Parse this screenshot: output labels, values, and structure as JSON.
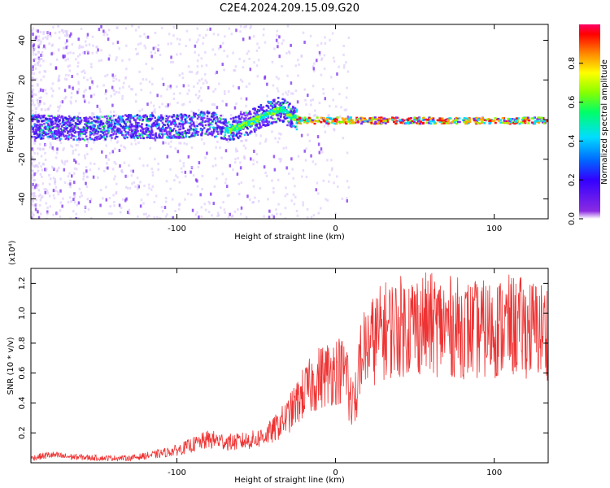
{
  "title": "C2E4.2024.209.15.09.G20",
  "chart_data": [
    {
      "type": "heatmap",
      "name": "spectrogram",
      "xlabel": "Height of straight line (km)",
      "ylabel": "Frequency (Hz)",
      "xlim": [
        -192,
        134
      ],
      "ylim": [
        -50,
        48
      ],
      "xticks": [
        -100,
        0,
        100
      ],
      "xtick_labels": [
        "-100",
        "0",
        "100"
      ],
      "yticks": [
        -40,
        -20,
        0,
        20,
        40
      ],
      "ytick_labels": [
        "-40",
        "-20",
        "0",
        "20",
        "40"
      ],
      "ridge": [
        {
          "x": -190,
          "f": -3
        },
        {
          "x": -160,
          "f": -4
        },
        {
          "x": -130,
          "f": -3
        },
        {
          "x": -100,
          "f": -3
        },
        {
          "x": -80,
          "f": -1
        },
        {
          "x": -68,
          "f": -5
        },
        {
          "x": -55,
          "f": -1
        },
        {
          "x": -45,
          "f": 3
        },
        {
          "x": -35,
          "f": 6
        },
        {
          "x": -28,
          "f": 2
        },
        {
          "x": -20,
          "f": 0
        },
        {
          "x": 0,
          "f": 0
        },
        {
          "x": 50,
          "f": 0
        },
        {
          "x": 100,
          "f": 0
        },
        {
          "x": 134,
          "f": 0
        }
      ],
      "colorbar": {
        "label": "Normalized spectral amplitude",
        "range": [
          0,
          1
        ],
        "ticks": [
          0.0,
          0.2,
          0.4,
          0.6,
          0.8
        ],
        "tick_labels": [
          "0.0",
          "0.2",
          "0.4",
          "0.6",
          "0.8"
        ]
      }
    },
    {
      "type": "line",
      "name": "snr",
      "xlabel": "Height of straight line (km)",
      "ylabel": "SNR (10 * v/v)",
      "scale_label": "(x10⁴)",
      "xlim": [
        -192,
        134
      ],
      "ylim": [
        0,
        1.3
      ],
      "xticks": [
        -100,
        0,
        100
      ],
      "xtick_labels": [
        "-100",
        "0",
        "100"
      ],
      "yticks": [
        0.2,
        0.4,
        0.6,
        0.8,
        1.0,
        1.2
      ],
      "ytick_labels": [
        "0.2",
        "0.4",
        "0.6",
        "0.8",
        "1.0",
        "1.2"
      ],
      "color": "#ee3333",
      "envelope": [
        {
          "x": -192,
          "y": 0.03
        },
        {
          "x": -180,
          "y": 0.05
        },
        {
          "x": -170,
          "y": 0.04
        },
        {
          "x": -150,
          "y": 0.03
        },
        {
          "x": -130,
          "y": 0.03
        },
        {
          "x": -115,
          "y": 0.05
        },
        {
          "x": -100,
          "y": 0.08
        },
        {
          "x": -80,
          "y": 0.15
        },
        {
          "x": -65,
          "y": 0.13
        },
        {
          "x": -50,
          "y": 0.15
        },
        {
          "x": -40,
          "y": 0.2
        },
        {
          "x": -30,
          "y": 0.3
        },
        {
          "x": -20,
          "y": 0.45
        },
        {
          "x": -10,
          "y": 0.55
        },
        {
          "x": 0,
          "y": 0.6
        },
        {
          "x": 10,
          "y": 0.58
        },
        {
          "x": 20,
          "y": 0.75
        },
        {
          "x": 30,
          "y": 0.85
        },
        {
          "x": 50,
          "y": 0.9
        },
        {
          "x": 70,
          "y": 0.88
        },
        {
          "x": 90,
          "y": 0.85
        },
        {
          "x": 110,
          "y": 0.88
        },
        {
          "x": 134,
          "y": 0.85
        }
      ]
    }
  ]
}
